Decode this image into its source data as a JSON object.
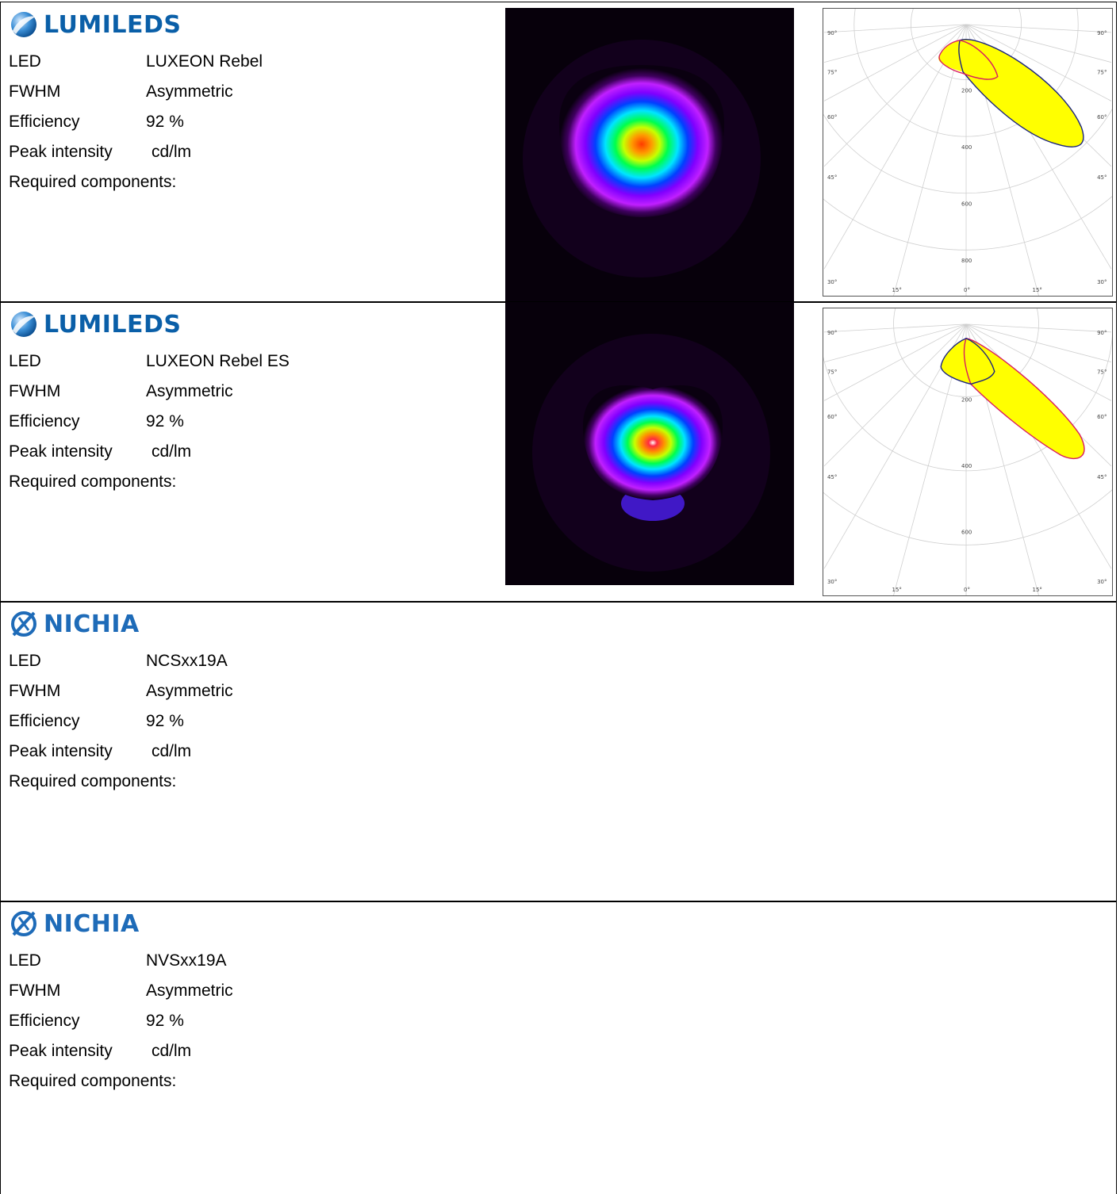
{
  "rows": [
    {
      "brand": "LUMILEDS",
      "specs": {
        "led_label": "LED",
        "led_value": "LUXEON Rebel",
        "fwhm_label": "FWHM",
        "fwhm_value": "Asymmetric",
        "eff_label": "Efficiency",
        "eff_value": "92 %",
        "peak_label": "Peak intensity",
        "peak_value": "cd/lm",
        "req_label": "Required components:"
      },
      "polar": {
        "angle_labels": [
          "90°",
          "75°",
          "60°",
          "45°",
          "30°",
          "15°",
          "0°",
          "15°"
        ],
        "radial_labels": [
          "200",
          "400",
          "600",
          "800"
        ],
        "curve_colors": [
          "#1a237e",
          "#d81b60"
        ],
        "fill_color": "#ffff00"
      }
    },
    {
      "brand": "LUMILEDS",
      "specs": {
        "led_label": "LED",
        "led_value": "LUXEON Rebel ES",
        "fwhm_label": "FWHM",
        "fwhm_value": "Asymmetric",
        "eff_label": "Efficiency",
        "eff_value": "92 %",
        "peak_label": "Peak intensity",
        "peak_value": "cd/lm",
        "req_label": "Required components:"
      },
      "polar": {
        "angle_labels": [
          "90°",
          "75°",
          "60°",
          "45°",
          "30°",
          "15°",
          "0°",
          "15°"
        ],
        "radial_labels": [
          "200",
          "400",
          "600"
        ],
        "curve_colors": [
          "#d81b60",
          "#1a237e"
        ],
        "fill_color": "#ffff00"
      }
    },
    {
      "brand": "NICHIA",
      "specs": {
        "led_label": "LED",
        "led_value": "NCSxx19A",
        "fwhm_label": "FWHM",
        "fwhm_value": "Asymmetric",
        "eff_label": "Efficiency",
        "eff_value": "92 %",
        "peak_label": "Peak intensity",
        "peak_value": "cd/lm",
        "req_label": "Required components:"
      }
    },
    {
      "brand": "NICHIA",
      "specs": {
        "led_label": "LED",
        "led_value": "NVSxx19A",
        "fwhm_label": "FWHM",
        "fwhm_value": "Asymmetric",
        "eff_label": "Efficiency",
        "eff_value": "92 %",
        "peak_label": "Peak intensity",
        "peak_value": "cd/lm",
        "req_label": "Required components:"
      }
    }
  ]
}
